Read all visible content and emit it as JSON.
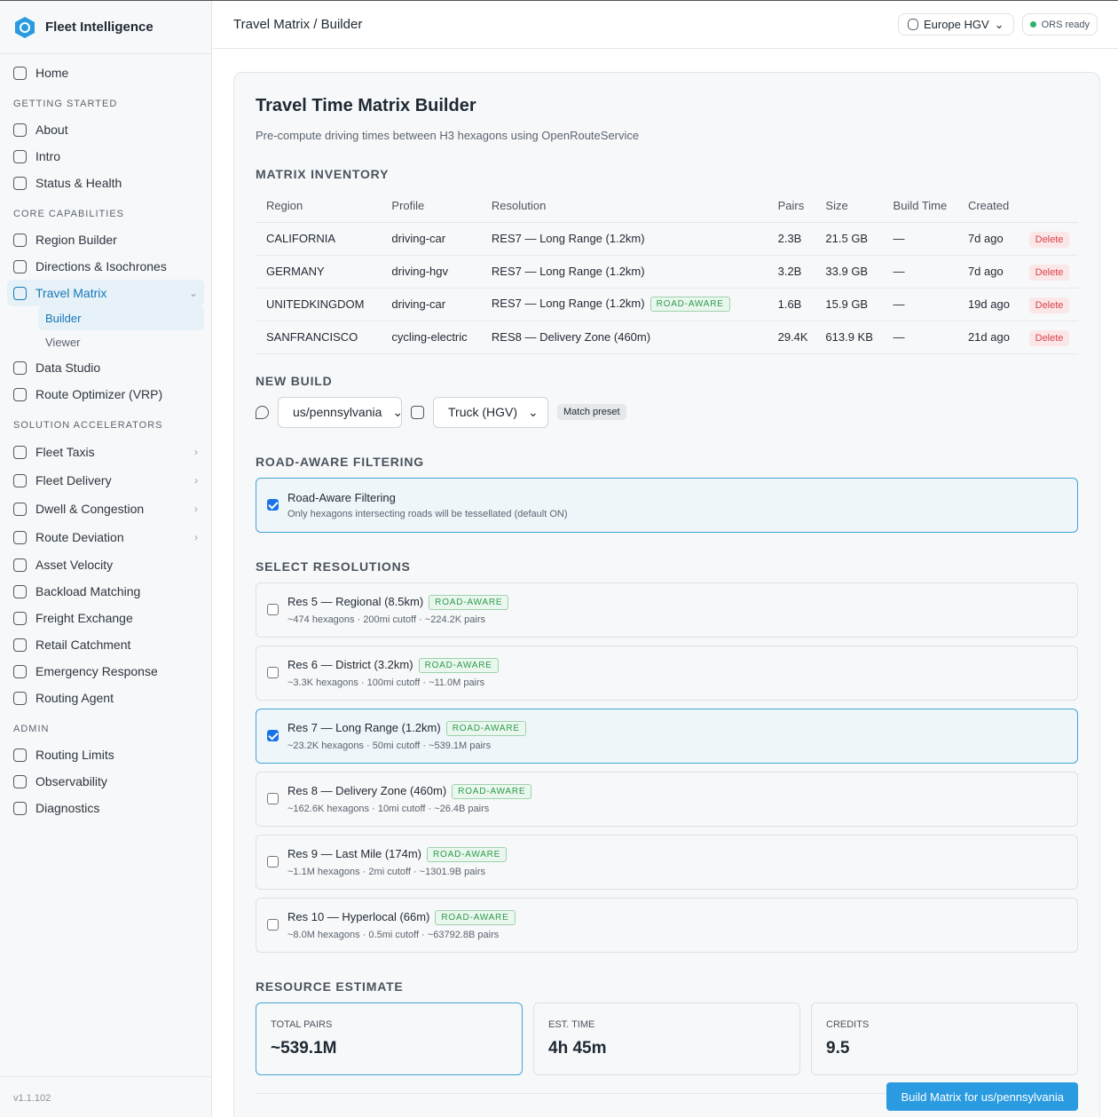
{
  "sidebar": {
    "brand": "Fleet Intelligence",
    "home": "Home",
    "sections": [
      {
        "title": "GETTING STARTED",
        "items": [
          {
            "label": "About"
          },
          {
            "label": "Intro"
          },
          {
            "label": "Status & Health"
          }
        ]
      },
      {
        "title": "CORE CAPABILITIES",
        "items": [
          {
            "label": "Region Builder"
          },
          {
            "label": "Directions & Isochrones"
          },
          {
            "label": "Travel Matrix",
            "active": true,
            "children": [
              {
                "label": "Builder",
                "active": true
              },
              {
                "label": "Viewer"
              }
            ]
          },
          {
            "label": "Data Studio"
          },
          {
            "label": "Route Optimizer (VRP)"
          }
        ]
      },
      {
        "title": "SOLUTION ACCELERATORS",
        "items": [
          {
            "label": "Fleet Taxis",
            "submenu": true
          },
          {
            "label": "Fleet Delivery",
            "submenu": true
          },
          {
            "label": "Dwell & Congestion",
            "submenu": true
          },
          {
            "label": "Route Deviation",
            "submenu": true
          },
          {
            "label": "Asset Velocity"
          },
          {
            "label": "Backload Matching"
          },
          {
            "label": "Freight Exchange"
          },
          {
            "label": "Retail Catchment"
          },
          {
            "label": "Emergency Response"
          },
          {
            "label": "Routing Agent"
          }
        ]
      },
      {
        "title": "ADMIN",
        "items": [
          {
            "label": "Routing Limits"
          },
          {
            "label": "Observability"
          },
          {
            "label": "Diagnostics"
          }
        ]
      }
    ],
    "version": "v1.1.102"
  },
  "header": {
    "breadcrumb": "Travel Matrix / Builder",
    "region": "Europe HGV",
    "status": "ORS ready"
  },
  "page": {
    "title": "Travel Time Matrix Builder",
    "subtitle": "Pre-compute driving times between H3 hexagons using OpenRouteService"
  },
  "inventory": {
    "heading": "MATRIX INVENTORY",
    "columns": [
      "Region",
      "Profile",
      "Resolution",
      "Pairs",
      "Size",
      "Build Time",
      "Created"
    ],
    "rows": [
      {
        "cells": [
          "CALIFORNIA",
          "driving-car",
          "RES7 — Long Range (1.2km)",
          "2.3B",
          "21.5 GB",
          "—",
          "7d ago"
        ],
        "action": "Delete"
      },
      {
        "cells": [
          "GERMANY",
          "driving-hgv",
          "RES7 — Long Range (1.2km)",
          "3.2B",
          "33.9 GB",
          "—",
          "7d ago"
        ],
        "action": "Delete"
      },
      {
        "cells": [
          "UNITEDKINGDOM",
          "driving-car",
          "RES7 — Long Range (1.2km)",
          "1.6B",
          "15.9 GB",
          "—",
          "19d ago"
        ],
        "badge": "ROAD-AWARE",
        "action": "Delete"
      },
      {
        "cells": [
          "SANFRANCISCO",
          "cycling-electric",
          "RES8 — Delivery Zone (460m)",
          "29.4K",
          "613.9 KB",
          "—",
          "21d ago"
        ],
        "action": "Delete"
      }
    ]
  },
  "new_build": {
    "heading": "NEW BUILD",
    "region": "us/pennsylvania",
    "profile": "Truck (HGV)",
    "preset": "Match preset"
  },
  "road_aware": {
    "heading": "ROAD-AWARE FILTERING",
    "title": "Road-Aware Filtering",
    "description": "Only hexagons intersecting roads will be tessellated (default ON)",
    "checked": true
  },
  "resolutions": {
    "heading": "SELECT RESOLUTIONS",
    "options": [
      {
        "label": "Res 5 — Regional (8.5km)",
        "badge": "ROAD-AWARE",
        "detail": "~474 hexagons · 200mi cutoff · ~224.2K pairs",
        "checked": false
      },
      {
        "label": "Res 6 — District (3.2km)",
        "badge": "ROAD-AWARE",
        "detail": "~3.3K hexagons · 100mi cutoff · ~11.0M pairs",
        "checked": false
      },
      {
        "label": "Res 7 — Long Range (1.2km)",
        "badge": "ROAD-AWARE",
        "detail": "~23.2K hexagons · 50mi cutoff · ~539.1M pairs",
        "checked": true
      },
      {
        "label": "Res 8 — Delivery Zone (460m)",
        "badge": "ROAD-AWARE",
        "detail": "~162.6K hexagons · 10mi cutoff · ~26.4B pairs",
        "checked": false
      },
      {
        "label": "Res 9 — Last Mile (174m)",
        "badge": "ROAD-AWARE",
        "detail": "~1.1M hexagons · 2mi cutoff · ~1301.9B pairs",
        "checked": false
      },
      {
        "label": "Res 10 — Hyperlocal (66m)",
        "badge": "ROAD-AWARE",
        "detail": "~8.0M hexagons · 0.5mi cutoff · ~63792.8B pairs",
        "checked": false
      }
    ]
  },
  "estimate": {
    "heading": "RESOURCE ESTIMATE",
    "cards": [
      {
        "label": "TOTAL PAIRS",
        "value": "~539.1M"
      },
      {
        "label": "EST. TIME",
        "value": "4h 45m"
      },
      {
        "label": "CREDITS",
        "value": "9.5"
      }
    ]
  },
  "action": "Build Matrix for us/pennsylvania"
}
